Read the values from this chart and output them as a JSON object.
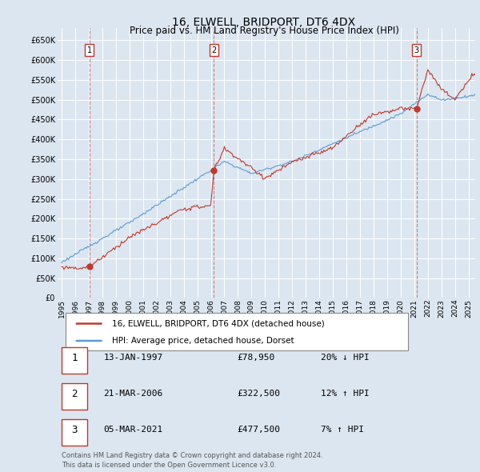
{
  "title": "16, ELWELL, BRIDPORT, DT6 4DX",
  "subtitle": "Price paid vs. HM Land Registry's House Price Index (HPI)",
  "legend_label_red": "16, ELWELL, BRIDPORT, DT6 4DX (detached house)",
  "legend_label_blue": "HPI: Average price, detached house, Dorset",
  "footer_line1": "Contains HM Land Registry data © Crown copyright and database right 2024.",
  "footer_line2": "This data is licensed under the Open Government Licence v3.0.",
  "transactions": [
    {
      "num": 1,
      "date": "13-JAN-1997",
      "price": "£78,950",
      "hpi": "20% ↓ HPI",
      "year": 1997.04,
      "value": 78950
    },
    {
      "num": 2,
      "date": "21-MAR-2006",
      "price": "£322,500",
      "hpi": "12% ↑ HPI",
      "year": 2006.22,
      "value": 322500
    },
    {
      "num": 3,
      "date": "05-MAR-2021",
      "price": "£477,500",
      "hpi": "7% ↑ HPI",
      "year": 2021.18,
      "value": 477500
    }
  ],
  "bg_color": "#dce6f1",
  "plot_bg_color": "#dce6f1",
  "grid_color": "#ffffff",
  "red_color": "#c0392b",
  "blue_color": "#5b9bd5",
  "ylim": [
    0,
    680000
  ],
  "xlim_start": 1994.7,
  "xlim_end": 2025.5,
  "yticks": [
    0,
    50000,
    100000,
    150000,
    200000,
    250000,
    300000,
    350000,
    400000,
    450000,
    500000,
    550000,
    600000,
    650000
  ],
  "xticks": [
    1995,
    1996,
    1997,
    1998,
    1999,
    2000,
    2001,
    2002,
    2003,
    2004,
    2005,
    2006,
    2007,
    2008,
    2009,
    2010,
    2011,
    2012,
    2013,
    2014,
    2015,
    2016,
    2017,
    2018,
    2019,
    2020,
    2021,
    2022,
    2023,
    2024,
    2025
  ]
}
